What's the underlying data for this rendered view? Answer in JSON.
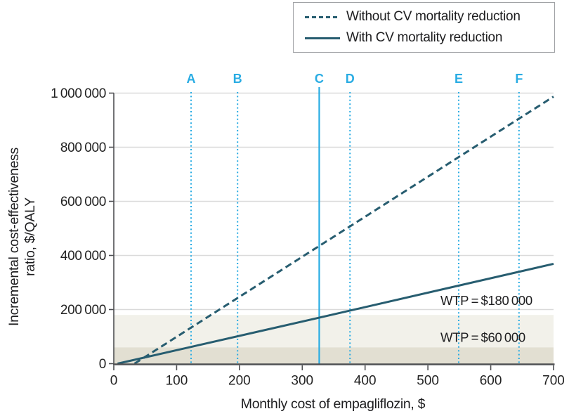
{
  "legend": {
    "items": [
      {
        "label": "Without CV mortality reduction",
        "style": "dashed"
      },
      {
        "label": "With CV mortality reduction",
        "style": "solid"
      }
    ]
  },
  "chart_data": {
    "type": "line",
    "title": "",
    "xlabel": "Monthly cost of empagliflozin, $",
    "ylabel": "Incremental cost-effectiveness ratio, $/QALY",
    "ylabel_lines": [
      "Incremental cost-effectiveness",
      "ratio, $/QALY"
    ],
    "xlim": [
      0,
      700
    ],
    "ylim": [
      0,
      1000000
    ],
    "x_ticks": [
      0,
      100,
      200,
      300,
      400,
      500,
      600,
      700
    ],
    "x_tick_labels": [
      "0",
      "100",
      "200",
      "300",
      "400",
      "500",
      "600",
      "700"
    ],
    "y_ticks": [
      0,
      200000,
      400000,
      600000,
      800000,
      1000000
    ],
    "y_tick_labels": [
      "0",
      "200 000",
      "400 000",
      "600 000",
      "800 000",
      "1 000 000"
    ],
    "grid": "horizontal-only",
    "legend_position": "top-right",
    "series": [
      {
        "name": "Without CV mortality reduction",
        "style": "dashed",
        "color": "#275d70",
        "points": [
          [
            33,
            0
          ],
          [
            327,
            435000
          ],
          [
            700,
            987000
          ]
        ]
      },
      {
        "name": "With CV mortality reduction",
        "style": "solid",
        "color": "#275d70",
        "points": [
          [
            6,
            0
          ],
          [
            327,
            170000
          ],
          [
            700,
            369000
          ]
        ]
      }
    ],
    "scenario_markers": [
      {
        "label": "A",
        "x": 123,
        "line": "dotted"
      },
      {
        "label": "B",
        "x": 197,
        "line": "dotted"
      },
      {
        "label": "C",
        "x": 327,
        "line": "solid"
      },
      {
        "label": "D",
        "x": 376,
        "line": "dotted"
      },
      {
        "label": "E",
        "x": 549,
        "line": "dotted"
      },
      {
        "label": "F",
        "x": 645,
        "line": "dotted"
      }
    ],
    "wtp_thresholds": [
      {
        "label": "WTP = $180 000",
        "value": 180000,
        "band_color": "#f2f1ea"
      },
      {
        "label": "WTP = $60 000",
        "value": 60000,
        "band_color": "#e2dfd2"
      }
    ],
    "colors": {
      "line": "#275d70",
      "marker_blue": "#29ace3",
      "grid": "#dadada",
      "axis": "#4f5053",
      "text": "#222222"
    }
  }
}
